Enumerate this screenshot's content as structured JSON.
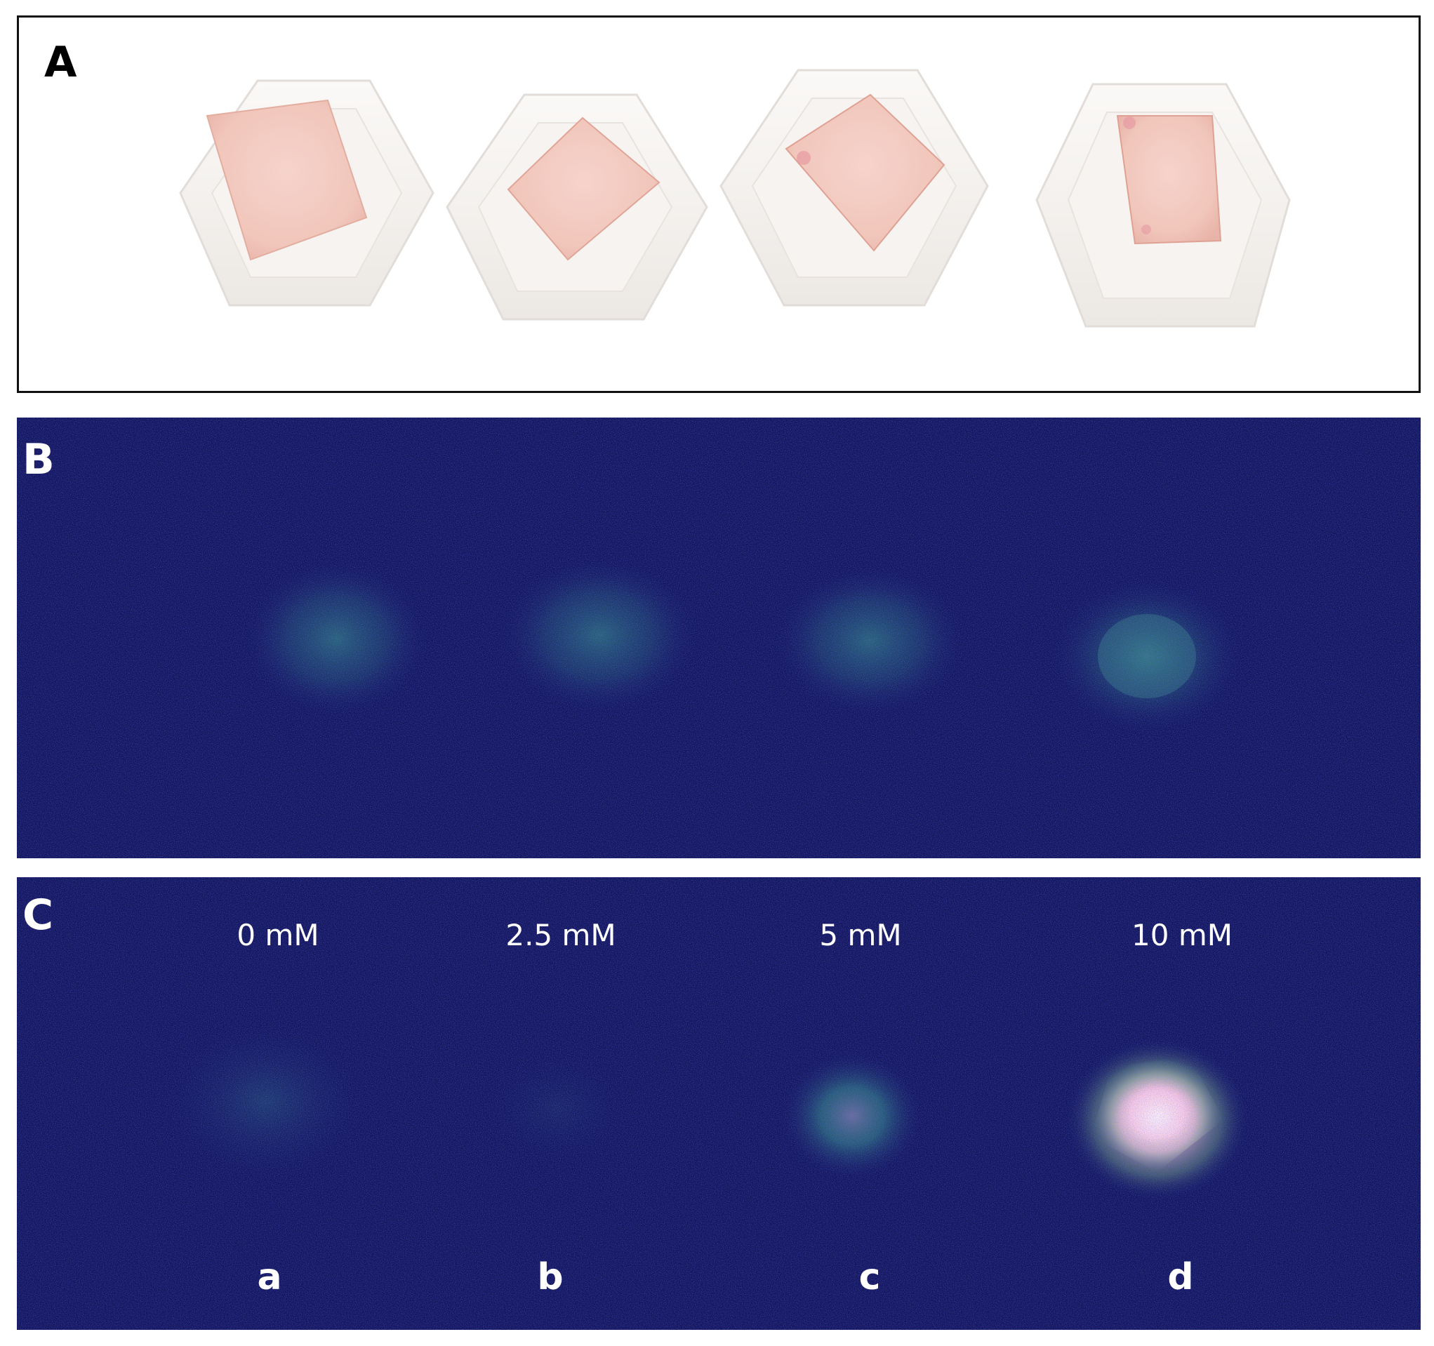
{
  "panels": {
    "a": {
      "letter": "A"
    },
    "b": {
      "letter": "B"
    },
    "c": {
      "letter": "C"
    }
  },
  "concentrations": [
    "0 mM",
    "2.5 mM",
    "5 mM",
    "10 mM"
  ],
  "sample_labels": [
    "a",
    "b",
    "c",
    "d"
  ],
  "colors": {
    "frame": "#111111",
    "tray": "#f4f1ee",
    "skin": "#f3c9c0",
    "background_fluorescence": "#12145a",
    "signal_low": "#2f8f86",
    "signal_high": "#ffd0e8"
  }
}
